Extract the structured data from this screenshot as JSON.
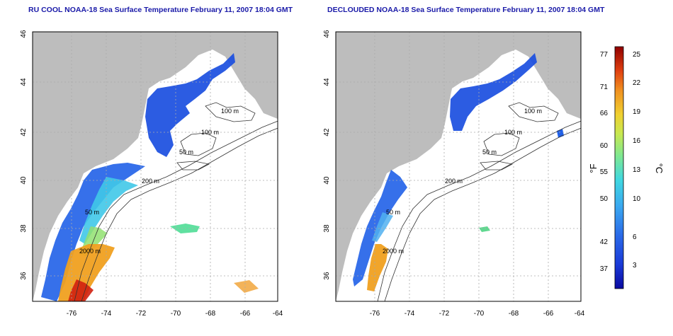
{
  "panels": [
    {
      "id": "left",
      "title": "RU COOL NOAA-18 Sea Surface Temperature February 11, 2007 18:04 GMT",
      "x_ticks": [
        "-76",
        "-74",
        "-72",
        "-70",
        "-68",
        "-66",
        "-64"
      ],
      "y_ticks": [
        "36",
        "38",
        "40",
        "42",
        "44",
        "46"
      ],
      "contour_labels": [
        "100 m",
        "100 m",
        "50 m",
        "200 m",
        "50 m",
        "2000 m"
      ]
    },
    {
      "id": "right",
      "title": "DECLOUDED NOAA-18 Sea Surface Temperature February 11, 2007 18:04 GMT",
      "x_ticks": [
        "-76",
        "-74",
        "-72",
        "-70",
        "-68",
        "-66",
        "-64"
      ],
      "y_ticks": [
        "36",
        "38",
        "40",
        "42",
        "44",
        "46"
      ],
      "contour_labels": [
        "100 m",
        "100 m",
        "50 m",
        "200 m",
        "50 m",
        "2000 m"
      ]
    }
  ],
  "colorbar": {
    "fahrenheit_ticks": [
      "77",
      "71",
      "66",
      "60",
      "55",
      "50",
      "42",
      "37"
    ],
    "celsius_ticks": [
      "25",
      "22",
      "19",
      "16",
      "13",
      "10",
      "6",
      "3"
    ],
    "fahrenheit_label": "°F",
    "celsius_label": "°C",
    "colors": [
      "#0a0aa0",
      "#1a3ad8",
      "#2a6ae8",
      "#3aa8f0",
      "#40d8e0",
      "#60e8a0",
      "#a8e860",
      "#e8e040",
      "#f0a020",
      "#e85010",
      "#c01010",
      "#900000"
    ]
  },
  "colors": {
    "land": "#bdbdbd",
    "ocean": "#ffffff",
    "title": "#1a1aa8",
    "grid": "#aaaaaa"
  }
}
